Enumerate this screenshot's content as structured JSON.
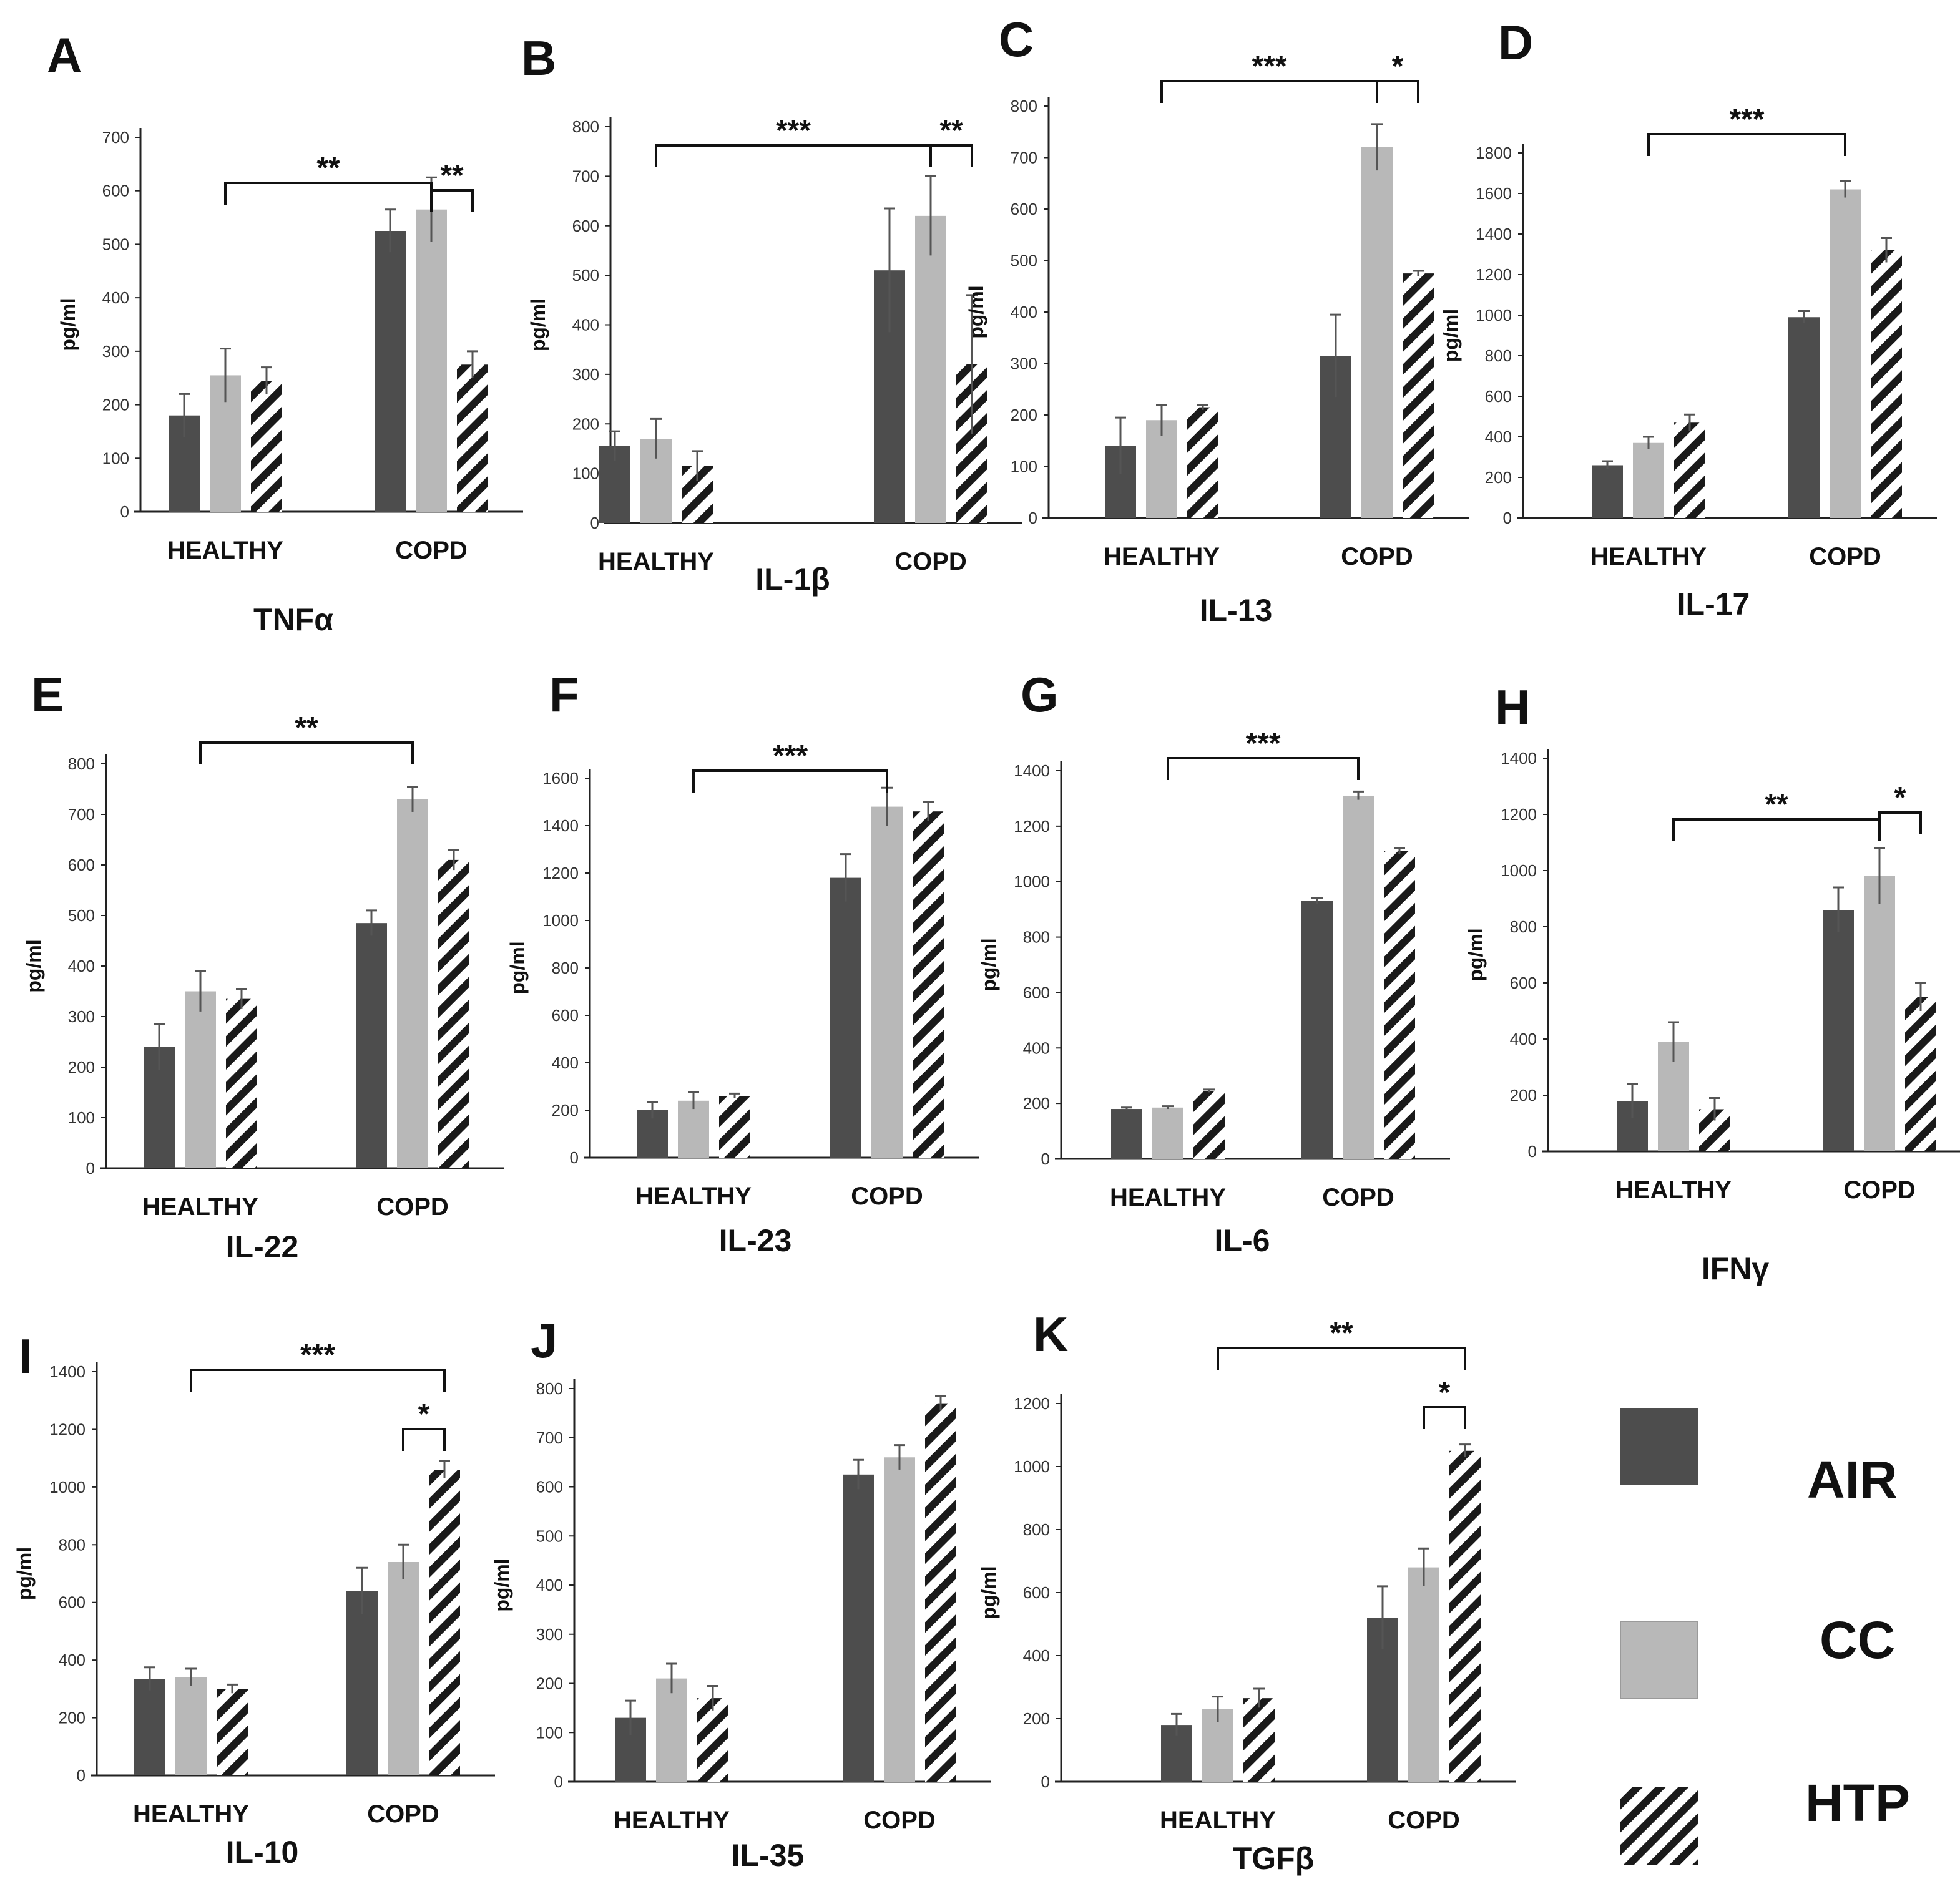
{
  "figure": {
    "colors": {
      "AIR": "#4d4d4d",
      "CC": "#b8b8b8",
      "HTP": "#1a1a1a",
      "axis": "#222222"
    },
    "y_axis_label": "pg/ml",
    "legend": [
      {
        "key": "AIR",
        "label": "AIR"
      },
      {
        "key": "CC",
        "label": "CC"
      },
      {
        "key": "HTP",
        "label": "HTP"
      }
    ]
  },
  "chart_data": [
    {
      "panel": "A",
      "type": "bar",
      "title": "TNFα",
      "categories": [
        "HEALTHY",
        "COPD"
      ],
      "ylim": [
        0,
        700
      ],
      "yticks": [
        0,
        100,
        200,
        300,
        400,
        500,
        600,
        700
      ],
      "series": [
        {
          "name": "AIR",
          "values": [
            180,
            525
          ],
          "errors": [
            40,
            40
          ]
        },
        {
          "name": "CC",
          "values": [
            255,
            565
          ],
          "errors": [
            50,
            60
          ]
        },
        {
          "name": "HTP",
          "values": [
            245,
            275
          ],
          "errors": [
            25,
            25
          ]
        }
      ],
      "brackets": [
        {
          "text": "**",
          "from": "HEALTHY",
          "to": "COPD.CC"
        },
        {
          "text": "**",
          "from": "COPD.CC",
          "to": "COPD.HTP"
        }
      ]
    },
    {
      "panel": "B",
      "type": "bar",
      "title": "IL-1β",
      "categories": [
        "HEALTHY",
        "COPD"
      ],
      "ylim": [
        0,
        800
      ],
      "yticks": [
        0,
        100,
        200,
        300,
        400,
        500,
        600,
        700,
        800
      ],
      "series": [
        {
          "name": "AIR",
          "values": [
            155,
            510
          ],
          "errors": [
            30,
            125
          ]
        },
        {
          "name": "CC",
          "values": [
            170,
            620
          ],
          "errors": [
            40,
            80
          ]
        },
        {
          "name": "HTP",
          "values": [
            115,
            320
          ],
          "errors": [
            30,
            140
          ]
        }
      ],
      "brackets": [
        {
          "text": "***",
          "from": "HEALTHY",
          "to": "COPD.CC"
        },
        {
          "text": "**",
          "from": "COPD.CC",
          "to": "COPD.HTP"
        }
      ]
    },
    {
      "panel": "C",
      "type": "bar",
      "title": "IL-13",
      "categories": [
        "HEALTHY",
        "COPD"
      ],
      "ylim": [
        0,
        800
      ],
      "yticks": [
        0,
        100,
        200,
        300,
        400,
        500,
        600,
        700,
        800
      ],
      "series": [
        {
          "name": "AIR",
          "values": [
            140,
            315
          ],
          "errors": [
            55,
            80
          ]
        },
        {
          "name": "CC",
          "values": [
            190,
            720
          ],
          "errors": [
            30,
            45
          ]
        },
        {
          "name": "HTP",
          "values": [
            215,
            475
          ],
          "errors": [
            5,
            5
          ]
        }
      ],
      "brackets": [
        {
          "text": "***",
          "from": "HEALTHY",
          "to": "COPD.CC"
        },
        {
          "text": "*",
          "from": "COPD.CC",
          "to": "COPD.HTP"
        }
      ]
    },
    {
      "panel": "D",
      "type": "bar",
      "title": "IL-17",
      "categories": [
        "HEALTHY",
        "COPD"
      ],
      "ylim": [
        0,
        1800
      ],
      "yticks": [
        0,
        200,
        400,
        600,
        800,
        1000,
        1200,
        1400,
        1600,
        1800
      ],
      "series": [
        {
          "name": "AIR",
          "values": [
            260,
            990
          ],
          "errors": [
            20,
            30
          ]
        },
        {
          "name": "CC",
          "values": [
            370,
            1620
          ],
          "errors": [
            30,
            40
          ]
        },
        {
          "name": "HTP",
          "values": [
            470,
            1320
          ],
          "errors": [
            40,
            60
          ]
        }
      ],
      "brackets": [
        {
          "text": "***",
          "from": "HEALTHY",
          "to": "COPD.CC"
        }
      ]
    },
    {
      "panel": "E",
      "type": "bar",
      "title": "IL-22",
      "categories": [
        "HEALTHY",
        "COPD"
      ],
      "ylim": [
        0,
        800
      ],
      "yticks": [
        0,
        100,
        200,
        300,
        400,
        500,
        600,
        700,
        800
      ],
      "series": [
        {
          "name": "AIR",
          "values": [
            240,
            485
          ],
          "errors": [
            45,
            25
          ]
        },
        {
          "name": "CC",
          "values": [
            350,
            730
          ],
          "errors": [
            40,
            25
          ]
        },
        {
          "name": "HTP",
          "values": [
            335,
            610
          ],
          "errors": [
            20,
            20
          ]
        }
      ],
      "brackets": [
        {
          "text": "**",
          "from": "HEALTHY",
          "to": "COPD.CC"
        }
      ]
    },
    {
      "panel": "F",
      "type": "bar",
      "title": "IL-23",
      "categories": [
        "HEALTHY",
        "COPD"
      ],
      "ylim": [
        0,
        1600
      ],
      "yticks": [
        0,
        200,
        400,
        600,
        800,
        1000,
        1200,
        1400,
        1600
      ],
      "series": [
        {
          "name": "AIR",
          "values": [
            200,
            1180
          ],
          "errors": [
            35,
            100
          ]
        },
        {
          "name": "CC",
          "values": [
            240,
            1480
          ],
          "errors": [
            35,
            80
          ]
        },
        {
          "name": "HTP",
          "values": [
            260,
            1460
          ],
          "errors": [
            10,
            40
          ]
        }
      ],
      "brackets": [
        {
          "text": "***",
          "from": "HEALTHY",
          "to": "COPD.CC"
        }
      ]
    },
    {
      "panel": "G",
      "type": "bar",
      "title": "IL-6",
      "categories": [
        "HEALTHY",
        "COPD"
      ],
      "ylim": [
        0,
        1400
      ],
      "yticks": [
        0,
        200,
        400,
        600,
        800,
        1000,
        1200,
        1400
      ],
      "series": [
        {
          "name": "AIR",
          "values": [
            180,
            930
          ],
          "errors": [
            5,
            10
          ]
        },
        {
          "name": "CC",
          "values": [
            185,
            1310
          ],
          "errors": [
            5,
            15
          ]
        },
        {
          "name": "HTP",
          "values": [
            245,
            1110
          ],
          "errors": [
            5,
            10
          ]
        }
      ],
      "brackets": [
        {
          "text": "***",
          "from": "HEALTHY",
          "to": "COPD.CC"
        }
      ]
    },
    {
      "panel": "H",
      "type": "bar",
      "title": "IFNγ",
      "categories": [
        "HEALTHY",
        "COPD"
      ],
      "ylim": [
        0,
        1400
      ],
      "yticks": [
        0,
        200,
        400,
        600,
        800,
        1000,
        1200,
        1400
      ],
      "series": [
        {
          "name": "AIR",
          "values": [
            180,
            860
          ],
          "errors": [
            60,
            80
          ]
        },
        {
          "name": "CC",
          "values": [
            390,
            980
          ],
          "errors": [
            70,
            100
          ]
        },
        {
          "name": "HTP",
          "values": [
            150,
            550
          ],
          "errors": [
            40,
            50
          ]
        }
      ],
      "brackets": [
        {
          "text": "**",
          "from": "HEALTHY",
          "to": "COPD.CC"
        },
        {
          "text": "*",
          "from": "COPD.CC",
          "to": "COPD.HTP"
        }
      ]
    },
    {
      "panel": "I",
      "type": "bar",
      "title": "IL-10",
      "categories": [
        "HEALTHY",
        "COPD"
      ],
      "ylim": [
        0,
        1400
      ],
      "yticks": [
        0,
        200,
        400,
        600,
        800,
        1000,
        1200,
        1400
      ],
      "series": [
        {
          "name": "AIR",
          "values": [
            335,
            640
          ],
          "errors": [
            40,
            80
          ]
        },
        {
          "name": "CC",
          "values": [
            340,
            740
          ],
          "errors": [
            30,
            60
          ]
        },
        {
          "name": "HTP",
          "values": [
            300,
            1060
          ],
          "errors": [
            15,
            30
          ]
        }
      ],
      "brackets": [
        {
          "text": "***",
          "from": "HEALTHY",
          "to": "COPD.HTP"
        },
        {
          "text": "*",
          "from": "COPD.CC",
          "to": "COPD.HTP"
        }
      ]
    },
    {
      "panel": "J",
      "type": "bar",
      "title": "IL-35",
      "categories": [
        "HEALTHY",
        "COPD"
      ],
      "ylim": [
        0,
        800
      ],
      "yticks": [
        0,
        100,
        200,
        300,
        400,
        500,
        600,
        700,
        800
      ],
      "series": [
        {
          "name": "AIR",
          "values": [
            130,
            625
          ],
          "errors": [
            35,
            30
          ]
        },
        {
          "name": "CC",
          "values": [
            210,
            660
          ],
          "errors": [
            30,
            25
          ]
        },
        {
          "name": "HTP",
          "values": [
            170,
            770
          ],
          "errors": [
            25,
            15
          ]
        }
      ],
      "brackets": []
    },
    {
      "panel": "K",
      "type": "bar",
      "title": "TGFβ",
      "categories": [
        "HEALTHY",
        "COPD"
      ],
      "ylim": [
        0,
        1200
      ],
      "yticks": [
        0,
        200,
        400,
        600,
        800,
        1000,
        1200
      ],
      "series": [
        {
          "name": "AIR",
          "values": [
            180,
            520
          ],
          "errors": [
            35,
            100
          ]
        },
        {
          "name": "CC",
          "values": [
            230,
            680
          ],
          "errors": [
            40,
            60
          ]
        },
        {
          "name": "HTP",
          "values": [
            265,
            1050
          ],
          "errors": [
            30,
            20
          ]
        }
      ],
      "brackets": [
        {
          "text": "**",
          "from": "HEALTHY",
          "to": "COPD.HTP"
        },
        {
          "text": "*",
          "from": "COPD.CC",
          "to": "COPD.HTP"
        }
      ]
    }
  ]
}
